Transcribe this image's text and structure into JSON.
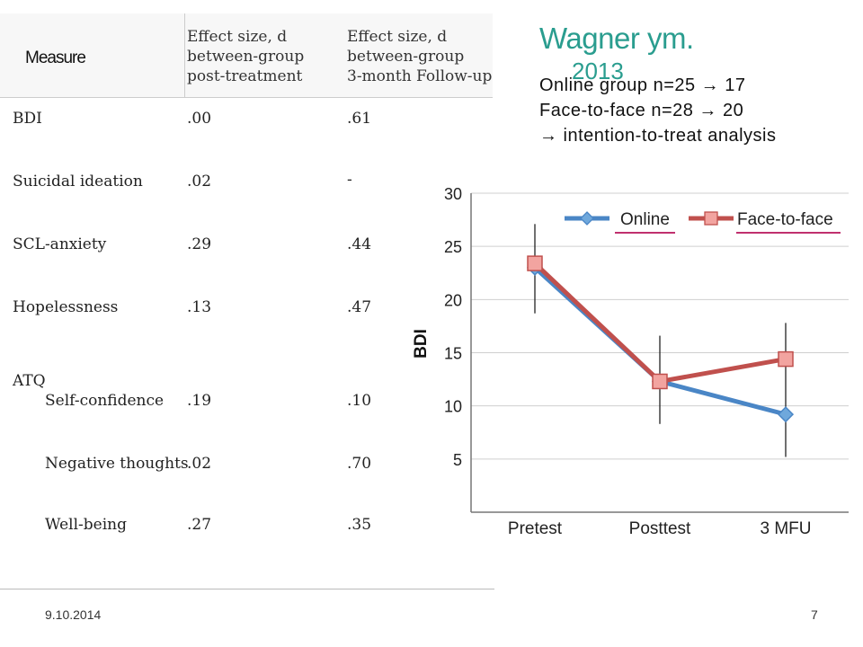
{
  "table": {
    "measure_label": "Measure",
    "col1_header": [
      "Effect size, d",
      "between-group",
      "post-treatment"
    ],
    "col2_header": [
      "Effect size, d",
      "between-group",
      "3-month Follow-up"
    ],
    "rows": [
      {
        "label": "BDI",
        "post": ".00",
        "followup": ".61"
      },
      {
        "label": "Suicidal ideation",
        "post": ".02",
        "followup": "-"
      },
      {
        "label": "SCL-anxiety",
        "post": ".29",
        "followup": ".44"
      },
      {
        "label": "Hopelessness",
        "post": ".13",
        "followup": ".47"
      },
      {
        "label": "ATQ",
        "post": "",
        "followup": ""
      },
      {
        "label": "Self-confidence",
        "post": ".19",
        "followup": ".10"
      },
      {
        "label": "Negative thoughts",
        "post": ".02",
        "followup": ".70"
      },
      {
        "label": "Well-being",
        "post": ".27",
        "followup": ".35"
      }
    ]
  },
  "title": {
    "line1": "Wagner ym.",
    "line2": "2013"
  },
  "info": {
    "line1": "Online group n=25 → 17",
    "line2": "Face-to-face n=28 → 20",
    "line3": "→ intention-to-treat analysis"
  },
  "footer": {
    "date": "9.10.2014",
    "page": "7"
  },
  "chart_data": {
    "type": "line",
    "categories": [
      "Pretest",
      "Posttest",
      "3 MFU"
    ],
    "ylabel": "BDI",
    "ylim": [
      0,
      30
    ],
    "yticks": [
      5,
      10,
      15,
      20,
      25,
      30
    ],
    "grid": true,
    "legend_position": "top",
    "series": [
      {
        "name": "Online",
        "values": [
          23.0,
          12.3,
          9.2
        ],
        "color": "#4a86c6",
        "marker": "diamond"
      },
      {
        "name": "Face-to-face",
        "values": [
          23.4,
          12.3,
          14.4
        ],
        "color": "#c0504d",
        "marker": "square"
      }
    ],
    "error_bars": [
      {
        "category": "Pretest",
        "low": 18.7,
        "high": 27.1
      },
      {
        "category": "Posttest",
        "low": 8.3,
        "high": 16.6
      },
      {
        "category": "3 MFU",
        "low": 5.2,
        "high": 17.8
      }
    ],
    "legend_underline_color": "#c0306e"
  }
}
